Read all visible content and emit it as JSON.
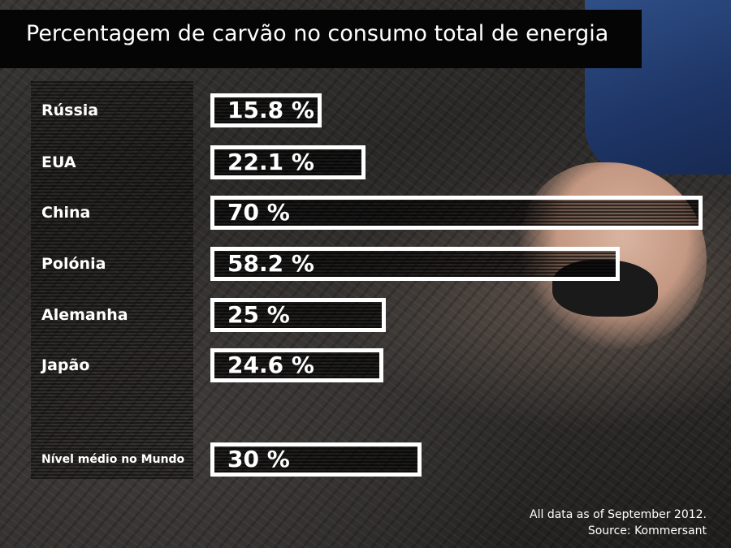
{
  "chart_data": {
    "type": "bar",
    "orientation": "horizontal",
    "title": "Percentagem de carvão no consumo total de energia",
    "categories": [
      "Rússia",
      "EUA",
      "China",
      "Polónia",
      "Alemanha",
      "Japão",
      "Nível médio no Mundo"
    ],
    "values": [
      15.8,
      22.1,
      70,
      58.2,
      25,
      24.6,
      30
    ],
    "value_labels": [
      "15.8 %",
      "22.1 %",
      "70 %",
      "58.2 %",
      "25 %",
      "24.6 %",
      "30 %"
    ],
    "xlim": [
      0,
      70
    ],
    "grid": false,
    "legend": false
  },
  "footer": {
    "note": "All data as of September 2012.",
    "source": "Source:  Kommersant"
  },
  "colors": {
    "bar_border": "#ffffff",
    "title_bar": "#050505",
    "text": "#ffffff"
  }
}
